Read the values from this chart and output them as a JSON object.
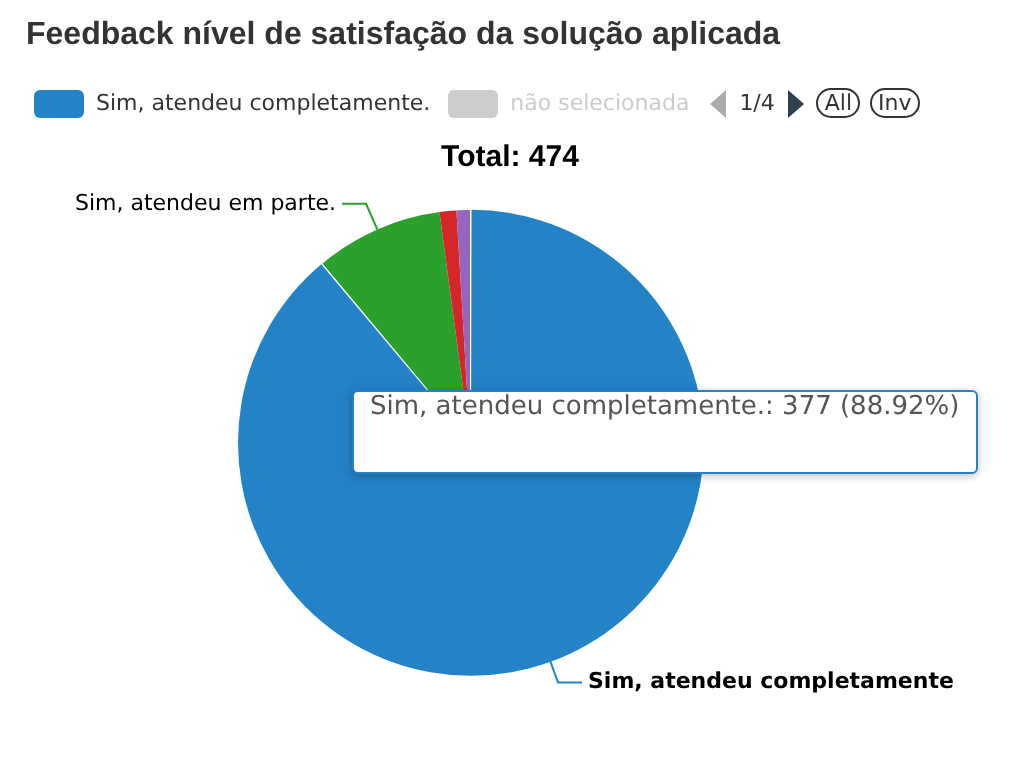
{
  "chart_data": {
    "type": "pie",
    "title": "Feedback nível de satisfação da solução aplicada",
    "subtitle": "Total: 474",
    "categories": [
      "Sim, atendeu completamente.",
      "não selecionada",
      "Sim, atendeu em parte.",
      null,
      null
    ],
    "values": [
      88.92,
      null,
      8.96,
      1.18,
      0.94
    ],
    "colors": [
      "#2383c6",
      "#cccccc",
      "#2ca02c",
      "#d62728",
      "#9467bd"
    ],
    "value_labels": [
      "Sim, atendeu completamente",
      null,
      null,
      null,
      null
    ],
    "legend": "top",
    "annotations": [
      "Sim, atendeu completamente.: 377 (88.92%)",
      "1/4",
      "All",
      "Inv"
    ]
  }
}
